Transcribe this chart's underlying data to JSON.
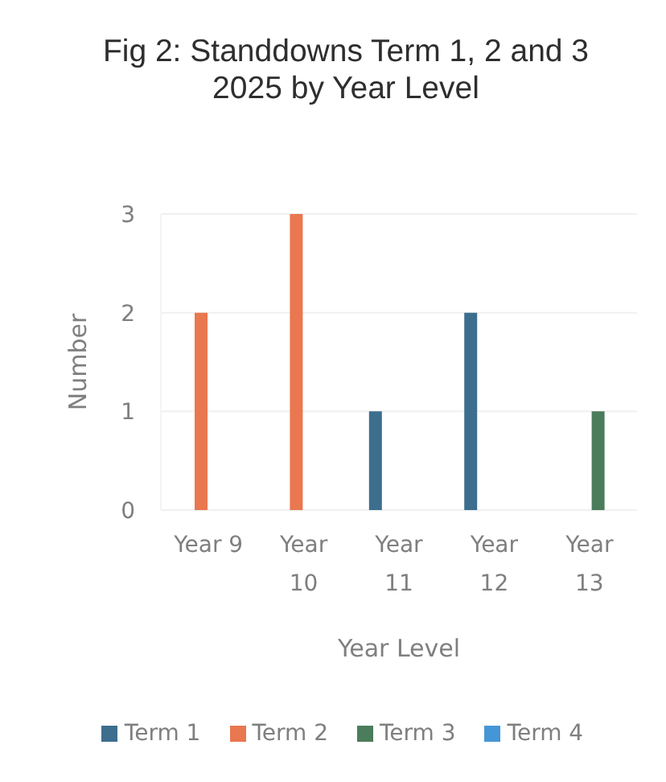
{
  "chart_data": {
    "type": "bar",
    "title": "Fig 2: Standdowns Term 1, 2 and 3 2025 by Year Level",
    "xlabel": "Year Level",
    "ylabel": "Number",
    "categories": [
      "Year 9",
      "Year 10",
      "Year 11",
      "Year 12",
      "Year 13"
    ],
    "series": [
      {
        "name": "Term 1",
        "color": "#3d6e8e",
        "values": [
          null,
          null,
          1,
          2,
          null
        ]
      },
      {
        "name": "Term 2",
        "color": "#e9774f",
        "values": [
          2,
          3,
          null,
          null,
          null
        ]
      },
      {
        "name": "Term 3",
        "color": "#4b7c5b",
        "values": [
          null,
          null,
          null,
          null,
          1
        ]
      },
      {
        "name": "Term 4",
        "color": "#4596d6",
        "values": [
          null,
          null,
          null,
          null,
          null
        ]
      }
    ],
    "ylim": [
      0,
      3
    ],
    "yticks": [
      0,
      1,
      2,
      3
    ],
    "grid": "y",
    "legend": "bottom"
  }
}
